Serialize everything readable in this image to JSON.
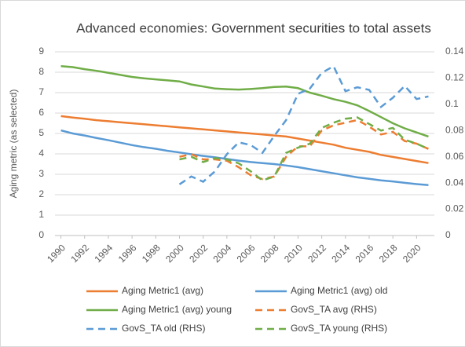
{
  "chart_data": {
    "type": "line",
    "title": "Advanced economies: Government securities to total assets",
    "y_label": "Aging metric (as selected)",
    "x": [
      1990,
      1991,
      1992,
      1993,
      1994,
      1995,
      1996,
      1997,
      1998,
      1999,
      2000,
      2001,
      2002,
      2003,
      2004,
      2005,
      2006,
      2007,
      2008,
      2009,
      2010,
      2011,
      2012,
      2013,
      2014,
      2015,
      2016,
      2017,
      2018,
      2019,
      2020,
      2021
    ],
    "xlim": [
      1989.5,
      2021.5
    ],
    "xticks": [
      1990,
      1992,
      1994,
      1996,
      1998,
      2000,
      2002,
      2004,
      2006,
      2008,
      2010,
      2012,
      2014,
      2016,
      2018,
      2020
    ],
    "ylim": [
      0,
      9
    ],
    "yticks": [
      0,
      1,
      2,
      3,
      4,
      5,
      6,
      7,
      8,
      9
    ],
    "y2lim": [
      0,
      0.14
    ],
    "y2ticks": [
      0,
      0.02,
      0.04,
      0.06,
      0.08,
      0.1,
      0.12,
      0.14
    ],
    "grid": true,
    "legend": "bottom",
    "series": [
      {
        "name": "Aging Metric1 (avg)",
        "color": "#ED7D31",
        "style": "solid",
        "values": [
          5.85,
          5.78,
          5.72,
          5.65,
          5.6,
          5.55,
          5.5,
          5.45,
          5.4,
          5.35,
          5.3,
          5.25,
          5.2,
          5.15,
          5.1,
          5.05,
          5.0,
          4.95,
          4.9,
          4.85,
          4.75,
          4.65,
          4.55,
          4.45,
          4.3,
          4.2,
          4.1,
          3.95,
          3.85,
          3.75,
          3.65,
          3.55
        ]
      },
      {
        "name": "Aging Metric1 (avg) old",
        "color": "#5B9BD5",
        "style": "solid",
        "values": [
          5.15,
          5.0,
          4.9,
          4.78,
          4.67,
          4.55,
          4.43,
          4.33,
          4.25,
          4.15,
          4.07,
          3.98,
          3.9,
          3.83,
          3.75,
          3.67,
          3.6,
          3.55,
          3.5,
          3.43,
          3.35,
          3.25,
          3.15,
          3.05,
          2.95,
          2.85,
          2.78,
          2.7,
          2.65,
          2.58,
          2.52,
          2.47
        ]
      },
      {
        "name": "Aging Metric1 (avg) young",
        "color": "#70AD47",
        "style": "solid",
        "values": [
          8.3,
          8.25,
          8.15,
          8.07,
          7.97,
          7.87,
          7.77,
          7.7,
          7.65,
          7.6,
          7.55,
          7.4,
          7.3,
          7.2,
          7.17,
          7.15,
          7.18,
          7.22,
          7.28,
          7.3,
          7.22,
          7.0,
          6.85,
          6.68,
          6.55,
          6.38,
          6.1,
          5.8,
          5.5,
          5.25,
          5.05,
          4.85
        ]
      },
      {
        "name": "GovS_TA avg (RHS)",
        "color": "#ED7D31",
        "style": "dashed",
        "axis": "y2",
        "values": [
          null,
          null,
          null,
          null,
          null,
          null,
          null,
          null,
          null,
          null,
          0.06,
          0.062,
          0.058,
          0.058,
          0.057,
          0.052,
          0.046,
          0.043,
          0.045,
          0.06,
          0.068,
          0.068,
          0.08,
          0.084,
          0.086,
          0.088,
          0.083,
          0.077,
          0.079,
          0.072,
          0.07,
          0.066
        ]
      },
      {
        "name": "GovS_TA old (RHS)",
        "color": "#5B9BD5",
        "style": "dashed",
        "axis": "y2",
        "values": [
          null,
          null,
          null,
          null,
          null,
          null,
          null,
          null,
          null,
          null,
          0.039,
          0.045,
          0.041,
          0.049,
          0.062,
          0.071,
          0.069,
          0.063,
          0.076,
          0.088,
          0.108,
          0.112,
          0.124,
          0.129,
          0.11,
          0.113,
          0.111,
          0.098,
          0.105,
          0.114,
          0.104,
          0.106
        ]
      },
      {
        "name": "GovS_TA young (RHS)",
        "color": "#70AD47",
        "style": "dashed",
        "axis": "y2",
        "values": [
          null,
          null,
          null,
          null,
          null,
          null,
          null,
          null,
          null,
          null,
          0.058,
          0.06,
          0.056,
          0.059,
          0.058,
          0.055,
          0.049,
          0.042,
          0.045,
          0.063,
          0.067,
          0.07,
          0.082,
          0.086,
          0.089,
          0.09,
          0.085,
          0.08,
          0.082,
          0.073,
          0.07,
          0.066
        ]
      }
    ]
  }
}
